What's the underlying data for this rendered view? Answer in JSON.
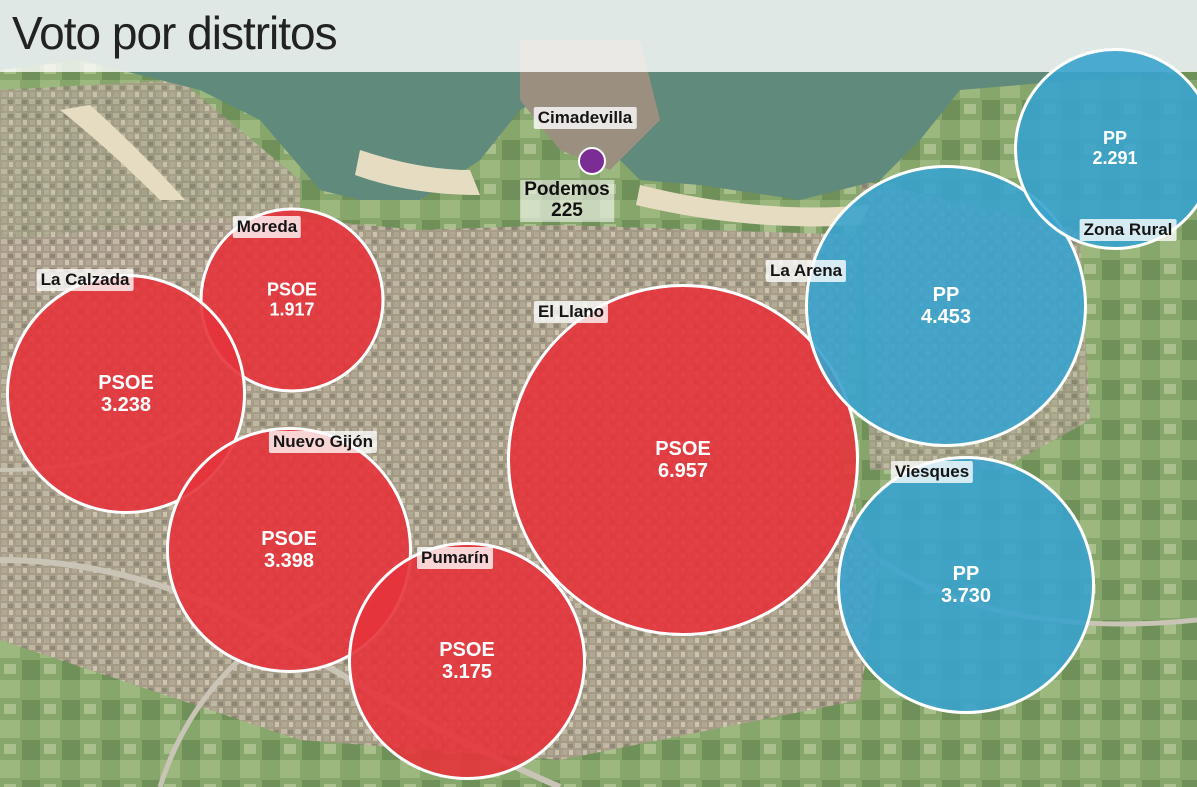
{
  "title": "Voto por distritos",
  "colors": {
    "psoe": "#e5333b",
    "pp": "#3aa3cd",
    "podemos": "#7b2d93"
  },
  "podemos_marker": {
    "district": "Cimadevilla",
    "party": "Podemos",
    "votes": "225"
  },
  "districts": [
    {
      "id": "moreda",
      "name": "Moreda",
      "party": "PSOE",
      "votes": "1.917",
      "votes_num": 1917
    },
    {
      "id": "la-calzada",
      "name": "La Calzada",
      "party": "PSOE",
      "votes": "3.238",
      "votes_num": 3238
    },
    {
      "id": "nuevo-gijon",
      "name": "Nuevo Gijón",
      "party": "PSOE",
      "votes": "3.398",
      "votes_num": 3398
    },
    {
      "id": "pumarin",
      "name": "Pumarín",
      "party": "PSOE",
      "votes": "3.175",
      "votes_num": 3175
    },
    {
      "id": "el-llano",
      "name": "El Llano",
      "party": "PSOE",
      "votes": "6.957",
      "votes_num": 6957
    },
    {
      "id": "la-arena",
      "name": "La Arena",
      "party": "PP",
      "votes": "4.453",
      "votes_num": 4453
    },
    {
      "id": "viesques",
      "name": "Viesques",
      "party": "PP",
      "votes": "3.730",
      "votes_num": 3730
    },
    {
      "id": "zona-rural",
      "name": "Zona Rural",
      "party": "PP",
      "votes": "2.291",
      "votes_num": 2291
    }
  ]
}
